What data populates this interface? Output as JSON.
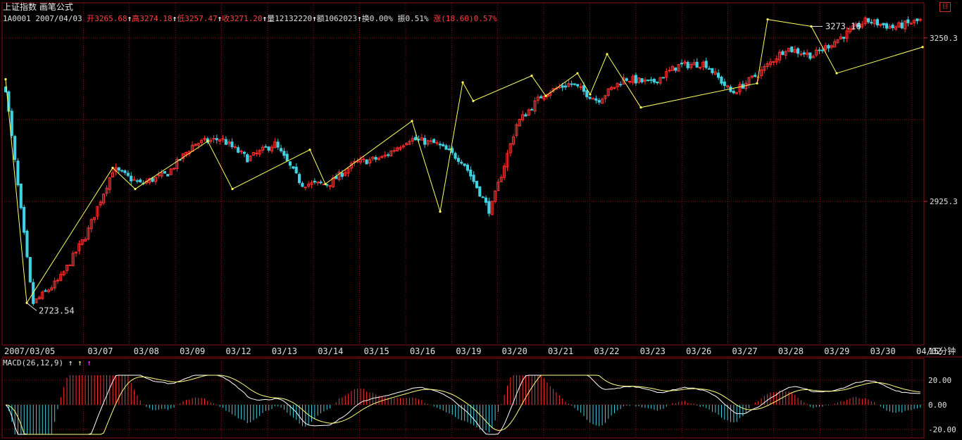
{
  "header": {
    "title": "上证指数 画笔公式",
    "code": "1A0001",
    "date": "2007/04/03",
    "open_label": "开",
    "open": "3265.68",
    "high_label": "高",
    "high": "3274.18",
    "low_label": "低",
    "low": "3257.47",
    "close_label": "收",
    "close": "3271.20",
    "volume_label": "量",
    "volume": "12132220",
    "amount_label": "额",
    "amount": "1062023",
    "turnover_label": "换",
    "turnover": "0.00%",
    "amplitude_label": "振",
    "amplitude": "0.51%",
    "change_label": "涨",
    "change": "(18.60)0.57%"
  },
  "period_label": "15分钟",
  "macd": {
    "label": "MACD(26,12,9)",
    "y_ticks": [
      "20.00",
      "0.00",
      "-20.00"
    ]
  },
  "colors": {
    "up": "#ff3030",
    "down": "#40d0e0",
    "stroke": "#ffff60",
    "grid": "#8a1010",
    "macd_line": "#ffffff",
    "signal_line": "#ffff80"
  },
  "icons": [
    "up-arrow-icon",
    "window-icon"
  ],
  "chart_data": {
    "type": "candlestick",
    "title": "上证指数",
    "x_ticks": [
      "2007/03/05",
      "03/07",
      "03/08",
      "03/09",
      "03/12",
      "03/13",
      "03/14",
      "03/15",
      "03/16",
      "03/19",
      "03/20",
      "03/21",
      "03/22",
      "03/23",
      "03/26",
      "03/27",
      "03/28",
      "03/29",
      "03/30",
      "04/02"
    ],
    "y_ticks": [
      "3250.3",
      "2925.3"
    ],
    "annotations": [
      {
        "text": "3273.16",
        "label_for": "high"
      },
      {
        "text": "2723.54",
        "label_for": "low"
      }
    ],
    "brush_strokes": [
      3168,
      2723.54,
      2992,
      2950,
      3045,
      2950,
      3028,
      2960,
      3085,
      2905,
      3162,
      3125,
      3175,
      3135,
      3180,
      3138,
      3218,
      3112,
      3160,
      3287,
      3273.16,
      3180,
      3232
    ],
    "price_path": [
      3150,
      2722,
      2770,
      2860,
      2990,
      2960,
      2980,
      3040,
      3050,
      3010,
      3040,
      2960,
      2960,
      3002,
      3012,
      3050,
      3040,
      3005,
      2905,
      3080,
      3140,
      3160,
      3126,
      3170,
      3160,
      3195,
      3200,
      3140,
      3180,
      3230,
      3215,
      3250,
      3285,
      3271,
      3285
    ]
  }
}
